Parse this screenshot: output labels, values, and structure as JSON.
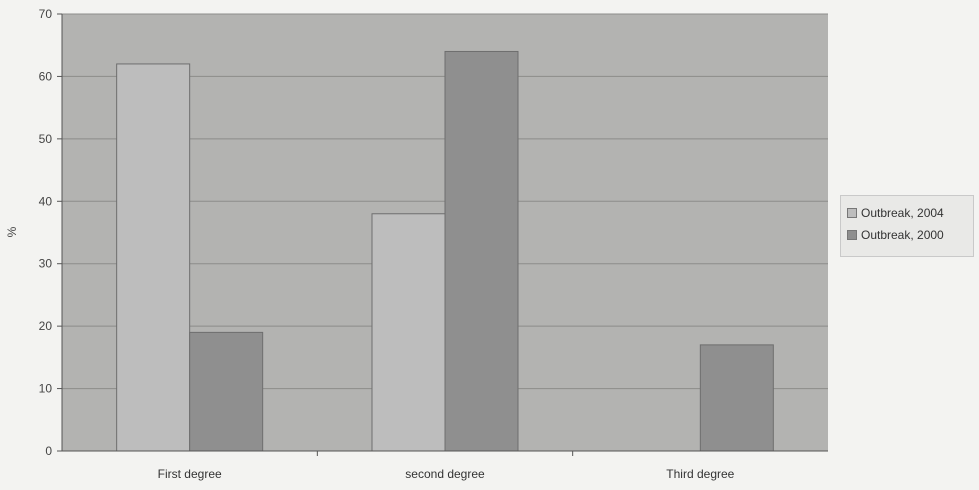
{
  "chart_data": {
    "type": "bar",
    "title": "",
    "xlabel": "",
    "ylabel": "%",
    "ylim": [
      0,
      70
    ],
    "yticks": [
      0,
      10,
      20,
      30,
      40,
      50,
      60,
      70
    ],
    "grid": true,
    "legend_position": "right",
    "categories": [
      "First degree",
      "second degree",
      "Third degree"
    ],
    "series": [
      {
        "name": "Outbreak, 2004",
        "values": [
          62,
          38,
          0
        ],
        "color": "#bdbdbd"
      },
      {
        "name": "Outbreak, 2000",
        "values": [
          19,
          64,
          17
        ],
        "color": "#8f8f8f"
      }
    ],
    "plot_background": "#b3b3b1",
    "gridline_color": "#8c8c8a"
  }
}
